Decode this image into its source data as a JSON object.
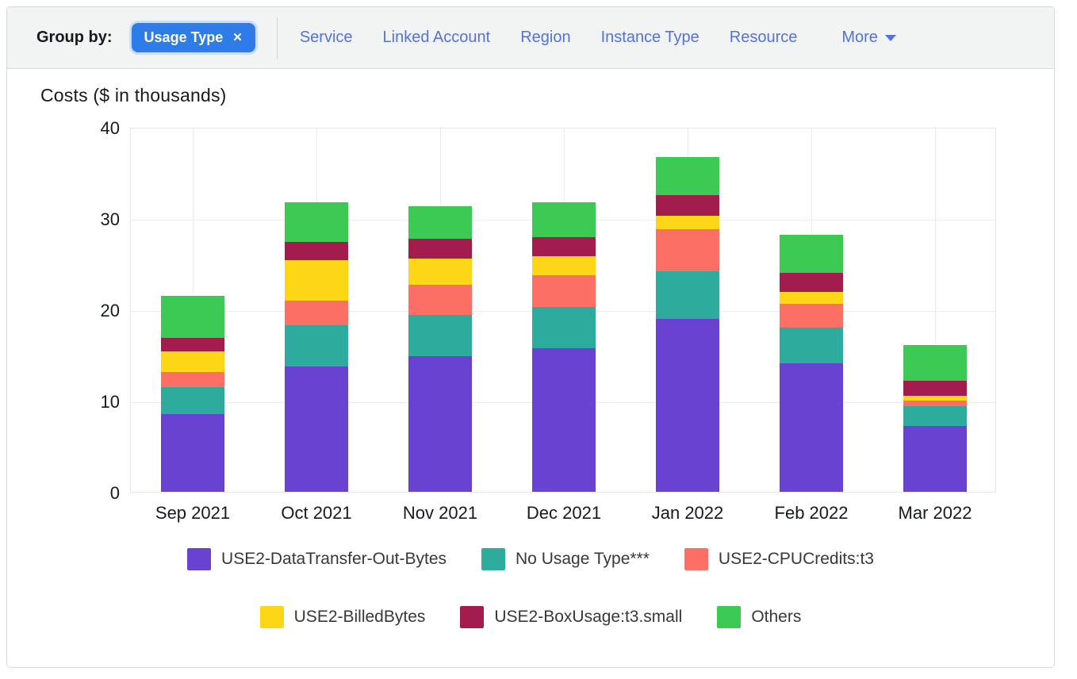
{
  "filter_bar": {
    "group_by_label": "Group by:",
    "selected_tag": {
      "label": "Usage Type",
      "remove_icon": "✕"
    },
    "options": [
      "Service",
      "Linked Account",
      "Region",
      "Instance Type",
      "Resource"
    ],
    "more": {
      "label": "More"
    },
    "tag_color": "#2e7ce8",
    "link_color": "#5372dd"
  },
  "chart_data": {
    "type": "bar",
    "stacked": true,
    "title": "Costs ($ in thousands)",
    "categories": [
      "Sep 2021",
      "Oct 2021",
      "Nov 2021",
      "Dec 2021",
      "Jan 2022",
      "Feb 2022",
      "Mar 2022"
    ],
    "series": [
      {
        "name": "USE2-DataTransfer-Out-Bytes",
        "color": "#6843d1",
        "values": [
          8.5,
          13.7,
          14.9,
          15.7,
          19.0,
          14.1,
          7.2
        ]
      },
      {
        "name": "No Usage Type***",
        "color": "#2dac9d",
        "values": [
          3.0,
          4.6,
          4.5,
          4.6,
          5.2,
          3.9,
          2.2
        ]
      },
      {
        "name": "USE2-CPUCredits:t3",
        "color": "#fb6f64",
        "values": [
          1.6,
          2.7,
          3.3,
          3.4,
          4.6,
          2.6,
          0.6
        ]
      },
      {
        "name": "USE2-BilledBytes",
        "color": "#fdd617",
        "values": [
          2.3,
          4.4,
          2.9,
          2.1,
          1.5,
          1.3,
          0.5
        ]
      },
      {
        "name": "USE2-BoxUsage:t3.small",
        "color": "#a21d4d",
        "values": [
          1.5,
          2.0,
          2.1,
          2.1,
          2.2,
          2.1,
          1.7
        ]
      },
      {
        "name": "Others",
        "color": "#3dca54",
        "values": [
          4.6,
          4.3,
          3.6,
          3.8,
          4.2,
          4.2,
          3.9
        ]
      }
    ],
    "ylabel": "",
    "xlabel": "",
    "ylim": [
      0,
      40
    ],
    "yticks": [
      0,
      10,
      20,
      30,
      40
    ],
    "grid": true,
    "legend_position": "bottom",
    "legend_rows": [
      [
        0,
        1,
        2
      ],
      [
        3,
        4,
        5
      ]
    ]
  }
}
